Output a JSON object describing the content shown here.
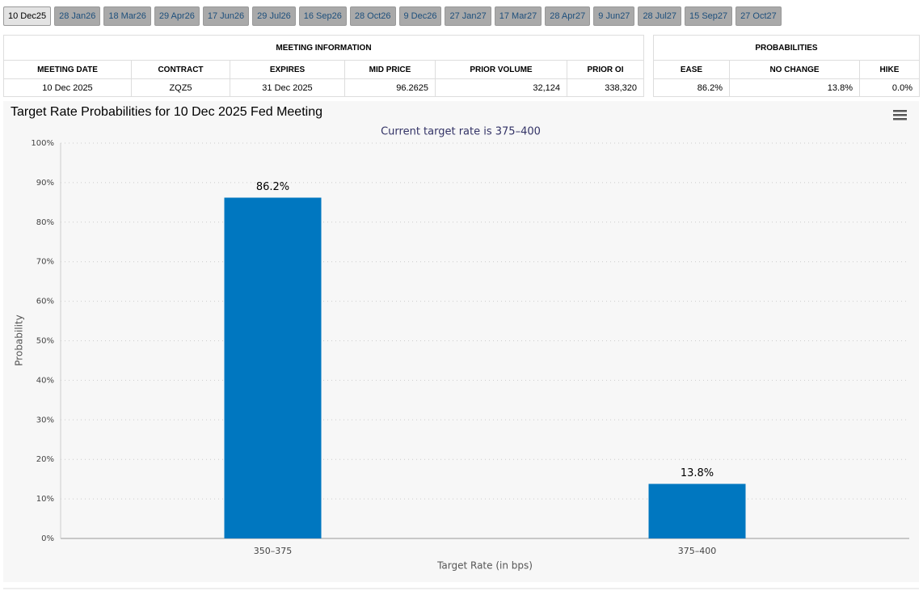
{
  "tabs": [
    "10 Dec25",
    "28 Jan26",
    "18 Mar26",
    "29 Apr26",
    "17 Jun26",
    "29 Jul26",
    "16 Sep26",
    "28 Oct26",
    "9 Dec26",
    "27 Jan27",
    "17 Mar27",
    "28 Apr27",
    "9 Jun27",
    "28 Jul27",
    "15 Sep27",
    "27 Oct27"
  ],
  "meeting_table": {
    "title": "MEETING INFORMATION",
    "columns": [
      "MEETING DATE",
      "CONTRACT",
      "EXPIRES",
      "MID PRICE",
      "PRIOR VOLUME",
      "PRIOR OI"
    ],
    "row": [
      "10 Dec 2025",
      "ZQZ5",
      "31 Dec 2025",
      "96.2625",
      "32,124",
      "338,320"
    ]
  },
  "probability_table": {
    "title": "PROBABILITIES",
    "columns": [
      "EASE",
      "NO CHANGE",
      "HIKE"
    ],
    "row": [
      "86.2%",
      "13.8%",
      "0.0%"
    ]
  },
  "chart_data": {
    "type": "bar",
    "title": "Target Rate Probabilities for 10 Dec 2025 Fed Meeting",
    "subtitle": "Current target rate is 375–400",
    "x_label": "Target Rate (in bps)",
    "y_label": "Probability",
    "categories": [
      "350–375",
      "375–400"
    ],
    "values": [
      86.2,
      13.8
    ],
    "value_labels": [
      "86.2%",
      "13.8%"
    ],
    "color": "#0077c0",
    "ylim": [
      0,
      100
    ],
    "yticks": [
      {
        "value": 0,
        "label": "0%"
      },
      {
        "value": 10,
        "label": "10%"
      },
      {
        "value": 20,
        "label": "20%"
      },
      {
        "value": 30,
        "label": "30%"
      },
      {
        "value": 40,
        "label": "40%"
      },
      {
        "value": 50,
        "label": "50%"
      },
      {
        "value": 60,
        "label": "60%"
      },
      {
        "value": 70,
        "label": "70%"
      },
      {
        "value": 80,
        "label": "80%"
      },
      {
        "value": 90,
        "label": "90%"
      },
      {
        "value": 100,
        "label": "100%"
      }
    ],
    "grid": true
  }
}
